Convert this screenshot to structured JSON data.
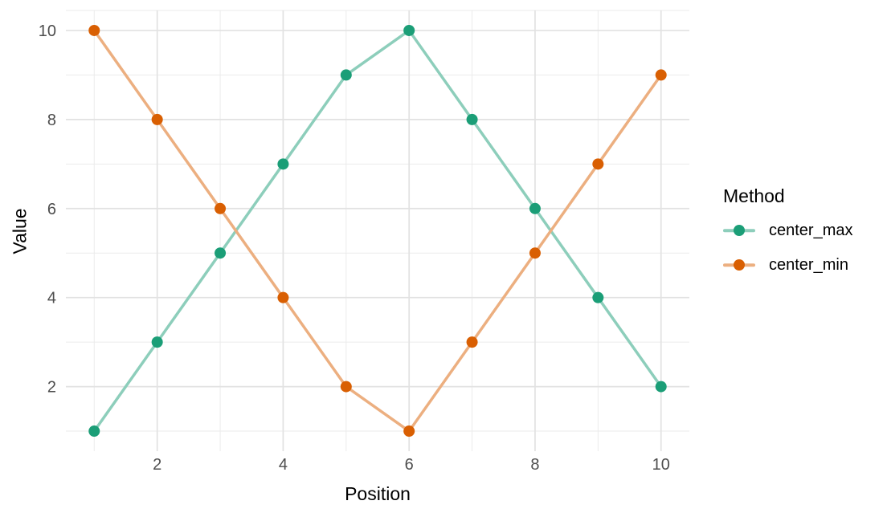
{
  "chart_data": {
    "type": "line",
    "title": "",
    "xlabel": "Position",
    "ylabel": "Value",
    "legend_title": "Method",
    "legend_position": "right",
    "grid": true,
    "x": [
      1,
      2,
      3,
      4,
      5,
      6,
      7,
      8,
      9,
      10
    ],
    "series": [
      {
        "name": "center_max",
        "values": [
          1,
          3,
          5,
          7,
          9,
          10,
          8,
          6,
          4,
          2
        ],
        "point_color": "#1b9e77",
        "line_color": "#8dcebb"
      },
      {
        "name": "center_min",
        "values": [
          10,
          8,
          6,
          4,
          2,
          1,
          3,
          5,
          7,
          9
        ],
        "point_color": "#d95f02",
        "line_color": "#ecaf80"
      }
    ],
    "x_ticks": [
      2,
      4,
      6,
      8,
      10
    ],
    "y_ticks": [
      2,
      4,
      6,
      8,
      10
    ],
    "x_minor_gridlines": [
      1,
      3,
      5,
      7,
      9
    ],
    "y_minor_gridlines": [
      1,
      3,
      5,
      7,
      9
    ],
    "xlim": [
      0.55,
      10.45
    ],
    "ylim": [
      0.55,
      10.45
    ]
  },
  "colors": {
    "background": "#ffffff",
    "grid_major": "#e2e2e2",
    "grid_minor": "#ebebeb",
    "tick_text": "#4d4d4d",
    "axis_title_text": "#000000"
  }
}
